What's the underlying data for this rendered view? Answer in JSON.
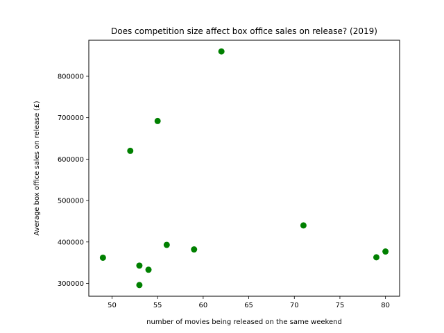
{
  "chart_data": {
    "type": "scatter",
    "title": "Does competition size affect box office sales on release? (2019)",
    "xlabel": "number of movies being released on the same weekend",
    "ylabel": "Average box office sales on release (£)",
    "xlim": [
      47.45,
      81.55
    ],
    "ylim": [
      269000,
      887000
    ],
    "xticks": [
      50,
      55,
      60,
      65,
      70,
      75,
      80
    ],
    "yticks": [
      300000,
      400000,
      500000,
      600000,
      700000,
      800000
    ],
    "grid": false,
    "marker_color": "#008000",
    "points": [
      {
        "x": 49,
        "y": 362000
      },
      {
        "x": 52,
        "y": 620000
      },
      {
        "x": 53,
        "y": 343000
      },
      {
        "x": 53,
        "y": 296000
      },
      {
        "x": 54,
        "y": 333000
      },
      {
        "x": 55,
        "y": 692000
      },
      {
        "x": 56,
        "y": 393000
      },
      {
        "x": 59,
        "y": 382000
      },
      {
        "x": 62,
        "y": 860000
      },
      {
        "x": 71,
        "y": 440000
      },
      {
        "x": 79,
        "y": 363000
      },
      {
        "x": 80,
        "y": 377000
      }
    ]
  }
}
